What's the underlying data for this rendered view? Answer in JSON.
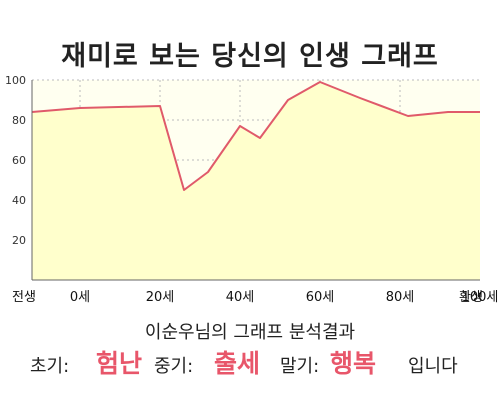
{
  "title": "재미로 보는 당신의 인생 그래프",
  "chart_data": {
    "type": "area",
    "x": [
      -12,
      0,
      20,
      26,
      32,
      40,
      45,
      52,
      60,
      70,
      82,
      92,
      100
    ],
    "y": [
      84,
      86,
      87,
      45,
      54,
      77,
      71,
      90,
      99,
      91,
      82,
      84,
      84
    ],
    "x_tick_labels": [
      "전생",
      "0세",
      "20세",
      "40세",
      "60세",
      "80세",
      "100세",
      "환생"
    ],
    "y_ticks": [
      20,
      40,
      60,
      80,
      100
    ],
    "ylim": [
      0,
      100
    ],
    "grid": true,
    "colors": {
      "line": "#e05a6a",
      "fill": "#ffffcc",
      "plot_bg": "#fffff0",
      "grid": "#bbbbbb"
    }
  },
  "summary": "이순우님의 그래프 분석결과",
  "phases": {
    "early_label": "초기:",
    "early_value": "험난",
    "mid_label": "중기:",
    "mid_value": "출세",
    "late_label": "말기:",
    "late_value": "행복",
    "suffix": "입니다"
  }
}
